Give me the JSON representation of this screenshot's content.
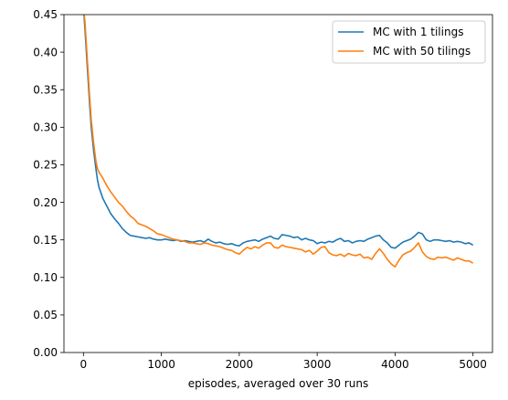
{
  "chart_data": {
    "type": "line",
    "title": "",
    "xlabel": "episodes, averaged over 30 runs",
    "ylabel": "",
    "xlim": [
      -250,
      5250
    ],
    "ylim": [
      0.0,
      0.45
    ],
    "xticks": [
      0,
      1000,
      2000,
      3000,
      4000,
      5000
    ],
    "xtick_labels": [
      "0",
      "1000",
      "2000",
      "3000",
      "4000",
      "5000"
    ],
    "yticks": [
      0.0,
      0.05,
      0.1,
      0.15,
      0.2,
      0.25,
      0.3,
      0.35,
      0.4,
      0.45
    ],
    "ytick_labels": [
      "0.00",
      "0.05",
      "0.10",
      "0.15",
      "0.20",
      "0.25",
      "0.30",
      "0.35",
      "0.40",
      "0.45"
    ],
    "grid": false,
    "legend_position": "top-right",
    "series": [
      {
        "name": "MC with 1 tilings",
        "color": "#1f77b4",
        "x": [
          0,
          20,
          50,
          80,
          100,
          130,
          160,
          180,
          200,
          250,
          300,
          350,
          400,
          450,
          500,
          550,
          600,
          650,
          700,
          750,
          800,
          850,
          900,
          950,
          1000,
          1050,
          1100,
          1150,
          1200,
          1250,
          1300,
          1350,
          1400,
          1450,
          1500,
          1550,
          1600,
          1650,
          1700,
          1750,
          1800,
          1850,
          1900,
          1950,
          2000,
          2050,
          2100,
          2150,
          2200,
          2250,
          2300,
          2350,
          2400,
          2450,
          2500,
          2550,
          2600,
          2650,
          2700,
          2750,
          2800,
          2850,
          2900,
          2950,
          3000,
          3050,
          3100,
          3150,
          3200,
          3250,
          3300,
          3350,
          3400,
          3450,
          3500,
          3550,
          3600,
          3650,
          3700,
          3750,
          3800,
          3850,
          3900,
          3950,
          4000,
          4050,
          4100,
          4150,
          4200,
          4250,
          4300,
          4350,
          4400,
          4450,
          4500,
          4550,
          4600,
          4650,
          4700,
          4750,
          4800,
          4850,
          4900,
          4950,
          5000
        ],
        "y": [
          0.46,
          0.43,
          0.38,
          0.33,
          0.3,
          0.27,
          0.245,
          0.23,
          0.22,
          0.205,
          0.195,
          0.185,
          0.178,
          0.172,
          0.165,
          0.16,
          0.156,
          0.155,
          0.154,
          0.153,
          0.152,
          0.153,
          0.151,
          0.15,
          0.15,
          0.151,
          0.15,
          0.149,
          0.15,
          0.148,
          0.149,
          0.148,
          0.147,
          0.148,
          0.149,
          0.147,
          0.151,
          0.148,
          0.146,
          0.147,
          0.145,
          0.144,
          0.145,
          0.143,
          0.142,
          0.146,
          0.148,
          0.149,
          0.15,
          0.148,
          0.151,
          0.153,
          0.155,
          0.152,
          0.151,
          0.157,
          0.156,
          0.155,
          0.153,
          0.154,
          0.15,
          0.152,
          0.15,
          0.149,
          0.145,
          0.147,
          0.146,
          0.148,
          0.147,
          0.15,
          0.152,
          0.148,
          0.149,
          0.146,
          0.148,
          0.149,
          0.148,
          0.151,
          0.153,
          0.155,
          0.156,
          0.15,
          0.146,
          0.14,
          0.139,
          0.143,
          0.147,
          0.149,
          0.151,
          0.155,
          0.16,
          0.158,
          0.15,
          0.148,
          0.15,
          0.15,
          0.149,
          0.148,
          0.149,
          0.147,
          0.148,
          0.147,
          0.145,
          0.146,
          0.143
        ]
      },
      {
        "name": "MC with 50 tilings",
        "color": "#ff7f0e",
        "x": [
          0,
          20,
          50,
          80,
          100,
          130,
          160,
          180,
          200,
          250,
          300,
          350,
          400,
          450,
          500,
          550,
          600,
          650,
          700,
          750,
          800,
          850,
          900,
          950,
          1000,
          1050,
          1100,
          1150,
          1200,
          1250,
          1300,
          1350,
          1400,
          1450,
          1500,
          1550,
          1600,
          1650,
          1700,
          1750,
          1800,
          1850,
          1900,
          1950,
          2000,
          2050,
          2100,
          2150,
          2200,
          2250,
          2300,
          2350,
          2400,
          2450,
          2500,
          2550,
          2600,
          2650,
          2700,
          2750,
          2800,
          2850,
          2900,
          2950,
          3000,
          3050,
          3100,
          3150,
          3200,
          3250,
          3300,
          3350,
          3400,
          3450,
          3500,
          3550,
          3600,
          3650,
          3700,
          3750,
          3800,
          3850,
          3900,
          3950,
          4000,
          4050,
          4100,
          4150,
          4200,
          4250,
          4300,
          4350,
          4400,
          4450,
          4500,
          4550,
          4600,
          4650,
          4700,
          4750,
          4800,
          4850,
          4900,
          4950,
          5000
        ],
        "y": [
          0.46,
          0.44,
          0.39,
          0.34,
          0.31,
          0.28,
          0.255,
          0.245,
          0.24,
          0.232,
          0.222,
          0.214,
          0.207,
          0.2,
          0.195,
          0.188,
          0.182,
          0.178,
          0.172,
          0.17,
          0.168,
          0.165,
          0.162,
          0.158,
          0.157,
          0.155,
          0.153,
          0.151,
          0.15,
          0.149,
          0.148,
          0.146,
          0.146,
          0.145,
          0.144,
          0.146,
          0.145,
          0.143,
          0.142,
          0.141,
          0.139,
          0.137,
          0.136,
          0.133,
          0.131,
          0.136,
          0.14,
          0.138,
          0.141,
          0.139,
          0.143,
          0.146,
          0.146,
          0.14,
          0.139,
          0.143,
          0.141,
          0.14,
          0.139,
          0.138,
          0.137,
          0.134,
          0.136,
          0.131,
          0.135,
          0.14,
          0.141,
          0.133,
          0.13,
          0.129,
          0.131,
          0.128,
          0.132,
          0.13,
          0.129,
          0.131,
          0.126,
          0.127,
          0.124,
          0.132,
          0.138,
          0.132,
          0.124,
          0.118,
          0.114,
          0.123,
          0.13,
          0.133,
          0.135,
          0.14,
          0.146,
          0.134,
          0.128,
          0.125,
          0.124,
          0.127,
          0.126,
          0.127,
          0.125,
          0.123,
          0.126,
          0.124,
          0.122,
          0.122,
          0.119
        ]
      }
    ]
  }
}
